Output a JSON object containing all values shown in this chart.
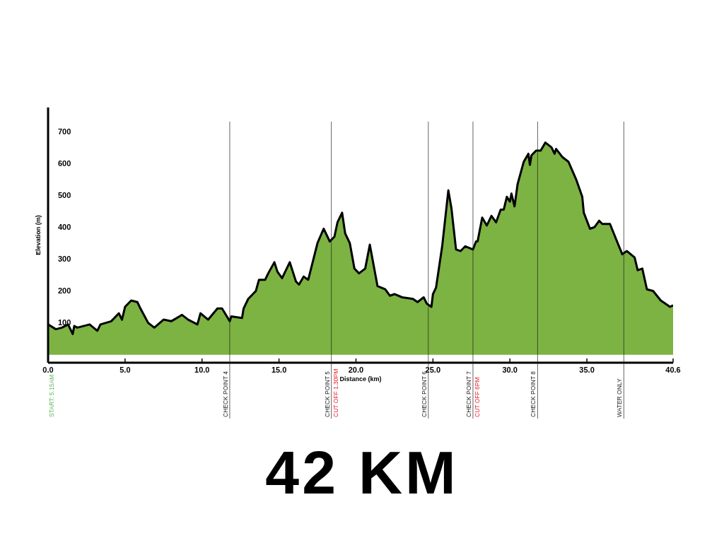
{
  "chart_data": {
    "type": "area",
    "xlabel": "Distance (km)",
    "ylabel": "Elevation (m)",
    "x": [
      0,
      0.5,
      0.9,
      1.3,
      1.6,
      1.7,
      1.9,
      2.7,
      3.2,
      3.4,
      4.1,
      4.6,
      4.8,
      5.0,
      5.4,
      5.8,
      6.0,
      6.5,
      6.9,
      7.5,
      8.0,
      8.7,
      9.1,
      9.7,
      9.9,
      10.4,
      11.0,
      11.3,
      11.8,
      11.9,
      12.6,
      12.7,
      13.0,
      13.5,
      13.7,
      14.1,
      14.3,
      14.7,
      14.9,
      15.2,
      15.7,
      16.1,
      16.3,
      16.6,
      16.9,
      17.5,
      17.9,
      18.3,
      18.6,
      18.8,
      19.1,
      19.3,
      19.6,
      19.9,
      20.2,
      20.6,
      20.9,
      21.4,
      21.9,
      22.2,
      22.5,
      23.0,
      23.7,
      24.0,
      24.4,
      24.6,
      24.9,
      25.0,
      25.2,
      25.6,
      26.0,
      26.2,
      26.5,
      26.8,
      27.1,
      27.6,
      27.8,
      27.9,
      28.2,
      28.5,
      28.8,
      29.1,
      29.4,
      29.6,
      29.8,
      30.0,
      30.1,
      30.3,
      30.5,
      30.9,
      31.2,
      31.3,
      31.4,
      31.7,
      32.0,
      32.3,
      32.7,
      32.9,
      33.0,
      33.4,
      33.8,
      34.3,
      34.7,
      34.8,
      35.2,
      35.5,
      35.8,
      36.0,
      36.5,
      37.0,
      37.3,
      37.6,
      38.1,
      38.3,
      38.6,
      38.9,
      39.3,
      39.8,
      40.4,
      40.6
    ],
    "series": [
      {
        "color": "#7cb342",
        "values": [
          95,
          80,
          85,
          95,
          65,
          90,
          85,
          95,
          75,
          95,
          105,
          130,
          110,
          150,
          170,
          165,
          145,
          100,
          85,
          110,
          105,
          125,
          110,
          95,
          130,
          110,
          145,
          145,
          105,
          120,
          115,
          145,
          175,
          200,
          235,
          235,
          255,
          290,
          260,
          240,
          290,
          230,
          220,
          245,
          235,
          350,
          395,
          355,
          370,
          415,
          445,
          380,
          350,
          270,
          255,
          270,
          345,
          215,
          205,
          185,
          190,
          180,
          175,
          165,
          180,
          160,
          150,
          190,
          210,
          340,
          515,
          460,
          330,
          325,
          340,
          330,
          355,
          355,
          430,
          405,
          435,
          415,
          455,
          455,
          495,
          480,
          505,
          465,
          535,
          605,
          630,
          595,
          625,
          640,
          640,
          665,
          650,
          630,
          645,
          620,
          605,
          550,
          495,
          445,
          395,
          400,
          420,
          410,
          410,
          350,
          315,
          325,
          305,
          265,
          270,
          205,
          200,
          170,
          150,
          155
        ]
      }
    ],
    "xlim": [
      0,
      40.6
    ],
    "xticks": [
      {
        "value": 0,
        "label": "0.0"
      },
      {
        "value": 5,
        "label": "5.0"
      },
      {
        "value": 10,
        "label": "10.0"
      },
      {
        "value": 15,
        "label": "15.0"
      },
      {
        "value": 20,
        "label": "20.0"
      },
      {
        "value": 25,
        "label": "25.0"
      },
      {
        "value": 30,
        "label": "30.0"
      },
      {
        "value": 35,
        "label": "35.0"
      },
      40.6
    ],
    "ylim": [
      -25,
      775
    ],
    "yticks": [
      100,
      200,
      300,
      400,
      500,
      600,
      700
    ],
    "ref_lines": [
      {
        "axis": "x",
        "value": 11.8,
        "label": "CHECK POINT 4",
        "color": "#222222"
      },
      {
        "axis": "x",
        "value": 18.4,
        "label": "CHECK POINT 5",
        "color": "#222222"
      },
      {
        "axis": "x",
        "value": 24.7,
        "label": "CHECK POINT 6",
        "color": "#222222"
      },
      {
        "axis": "x",
        "value": 27.6,
        "label": "CHECK POINT 7",
        "color": "#222222"
      },
      {
        "axis": "x",
        "value": 31.8,
        "label": "CHECK POINT 8",
        "color": "#222222"
      },
      {
        "axis": "x",
        "value": 37.4,
        "label": "WATER ONLY",
        "color": "#222222"
      }
    ],
    "annotations": [
      "START: 5.15AM",
      "CUT OFF 1.30PM",
      "CUT OFF 6PM",
      "42 KM"
    ]
  }
}
